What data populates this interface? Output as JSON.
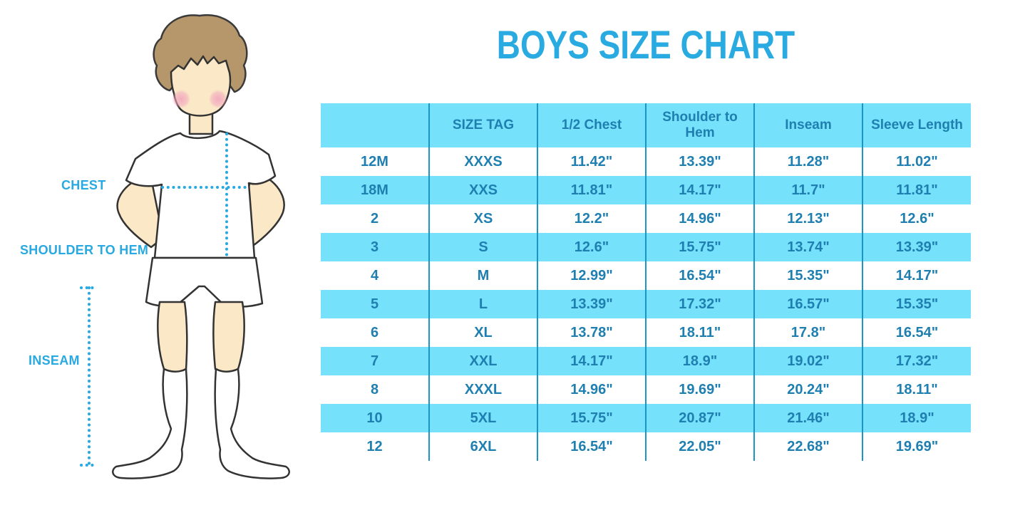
{
  "title": "BOYS SIZE CHART",
  "figure": {
    "illustration": "boy-standing-hands-on-hips-with-measurement-guides",
    "labels": {
      "chest": "CHEST",
      "shoulder_to_hem": "SHOULDER TO HEM",
      "inseam": "INSEAM"
    }
  },
  "colors": {
    "accent_blue": "#29ABE2",
    "table_text_blue": "#1E7FB0",
    "row_band_blue": "#76E1FB",
    "divider_blue": "#1B94C8",
    "dotted_line_blue": "#29A9E1",
    "hair_brown": "#B6976B",
    "skin": "#FBE8C7",
    "blush_pink": "#F2A9BE",
    "outline": "#333333"
  },
  "table": {
    "headers": [
      "",
      "SIZE TAG",
      "1/2 Chest",
      "Shoulder to Hem",
      "Inseam",
      "Sleeve Length"
    ],
    "rows": [
      [
        "12M",
        "XXXS",
        "11.42\"",
        "13.39\"",
        "11.28\"",
        "11.02\""
      ],
      [
        "18M",
        "XXS",
        "11.81\"",
        "14.17\"",
        "11.7\"",
        "11.81\""
      ],
      [
        "2",
        "XS",
        "12.2\"",
        "14.96\"",
        "12.13\"",
        "12.6\""
      ],
      [
        "3",
        "S",
        "12.6\"",
        "15.75\"",
        "13.74\"",
        "13.39\""
      ],
      [
        "4",
        "M",
        "12.99\"",
        "16.54\"",
        "15.35\"",
        "14.17\""
      ],
      [
        "5",
        "L",
        "13.39\"",
        "17.32\"",
        "16.57\"",
        "15.35\""
      ],
      [
        "6",
        "XL",
        "13.78\"",
        "18.11\"",
        "17.8\"",
        "16.54\""
      ],
      [
        "7",
        "XXL",
        "14.17\"",
        "18.9\"",
        "19.02\"",
        "17.32\""
      ],
      [
        "8",
        "XXXL",
        "14.96\"",
        "19.69\"",
        "20.24\"",
        "18.11\""
      ],
      [
        "10",
        "5XL",
        "15.75\"",
        "20.87\"",
        "21.46\"",
        "18.9\""
      ],
      [
        "12",
        "6XL",
        "16.54\"",
        "22.05\"",
        "22.68\"",
        "19.69\""
      ]
    ]
  }
}
